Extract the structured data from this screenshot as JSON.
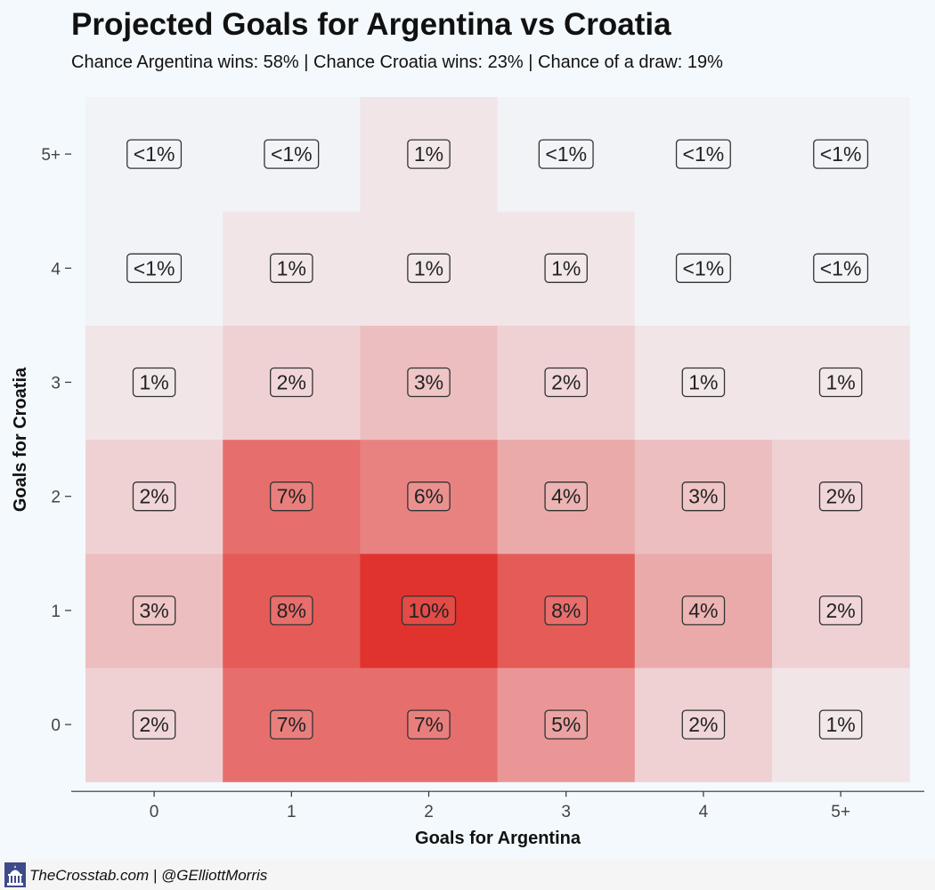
{
  "header": {
    "title": "Projected Goals for Argentina vs Croatia",
    "subtitle": "Chance Argentina wins: 58% | Chance Croatia wins: 23% | Chance of a draw: 19%"
  },
  "footer": {
    "credit": "TheCrosstab.com | @GElliottMorris",
    "logo_icon": "capitol-building-icon"
  },
  "chart_data": {
    "type": "heatmap",
    "title": "Projected Goals for Argentina vs Croatia",
    "subtitle": "Chance Argentina wins: 58% | Chance Croatia wins: 23% | Chance of a draw: 19%",
    "xlabel": "Goals for Argentina",
    "ylabel": "Goals for Croatia",
    "x_categories": [
      "0",
      "1",
      "2",
      "3",
      "4",
      "5+"
    ],
    "y_categories": [
      "0",
      "1",
      "2",
      "3",
      "4",
      "5+"
    ],
    "cells": [
      {
        "x": "0",
        "y": "0",
        "value": 2,
        "label": "2%"
      },
      {
        "x": "1",
        "y": "0",
        "value": 7,
        "label": "7%"
      },
      {
        "x": "2",
        "y": "0",
        "value": 7,
        "label": "7%"
      },
      {
        "x": "3",
        "y": "0",
        "value": 5,
        "label": "5%"
      },
      {
        "x": "4",
        "y": "0",
        "value": 2,
        "label": "2%"
      },
      {
        "x": "5+",
        "y": "0",
        "value": 1,
        "label": "1%"
      },
      {
        "x": "0",
        "y": "1",
        "value": 3,
        "label": "3%"
      },
      {
        "x": "1",
        "y": "1",
        "value": 8,
        "label": "8%"
      },
      {
        "x": "2",
        "y": "1",
        "value": 10,
        "label": "10%"
      },
      {
        "x": "3",
        "y": "1",
        "value": 8,
        "label": "8%"
      },
      {
        "x": "4",
        "y": "1",
        "value": 4,
        "label": "4%"
      },
      {
        "x": "5+",
        "y": "1",
        "value": 2,
        "label": "2%"
      },
      {
        "x": "0",
        "y": "2",
        "value": 2,
        "label": "2%"
      },
      {
        "x": "1",
        "y": "2",
        "value": 7,
        "label": "7%"
      },
      {
        "x": "2",
        "y": "2",
        "value": 6,
        "label": "6%"
      },
      {
        "x": "3",
        "y": "2",
        "value": 4,
        "label": "4%"
      },
      {
        "x": "4",
        "y": "2",
        "value": 3,
        "label": "3%"
      },
      {
        "x": "5+",
        "y": "2",
        "value": 2,
        "label": "2%"
      },
      {
        "x": "0",
        "y": "3",
        "value": 1,
        "label": "1%"
      },
      {
        "x": "1",
        "y": "3",
        "value": 2,
        "label": "2%"
      },
      {
        "x": "2",
        "y": "3",
        "value": 3,
        "label": "3%"
      },
      {
        "x": "3",
        "y": "3",
        "value": 2,
        "label": "2%"
      },
      {
        "x": "4",
        "y": "3",
        "value": 1,
        "label": "1%"
      },
      {
        "x": "5+",
        "y": "3",
        "value": 1,
        "label": "1%"
      },
      {
        "x": "0",
        "y": "4",
        "value": 0.3,
        "label": "<1%"
      },
      {
        "x": "1",
        "y": "4",
        "value": 1,
        "label": "1%"
      },
      {
        "x": "2",
        "y": "4",
        "value": 1,
        "label": "1%"
      },
      {
        "x": "3",
        "y": "4",
        "value": 1,
        "label": "1%"
      },
      {
        "x": "4",
        "y": "4",
        "value": 0.3,
        "label": "<1%"
      },
      {
        "x": "5+",
        "y": "4",
        "value": 0.3,
        "label": "<1%"
      },
      {
        "x": "0",
        "y": "5+",
        "value": 0.3,
        "label": "<1%"
      },
      {
        "x": "1",
        "y": "5+",
        "value": 0.3,
        "label": "<1%"
      },
      {
        "x": "2",
        "y": "5+",
        "value": 1,
        "label": "1%"
      },
      {
        "x": "3",
        "y": "5+",
        "value": 0.3,
        "label": "<1%"
      },
      {
        "x": "4",
        "y": "5+",
        "value": 0.3,
        "label": "<1%"
      },
      {
        "x": "5+",
        "y": "5+",
        "value": 0.3,
        "label": "<1%"
      }
    ],
    "value_range": [
      0,
      10
    ],
    "color_low": "#f3f9fd",
    "color_high": "#e0332e",
    "legend": "none",
    "grid": false
  }
}
